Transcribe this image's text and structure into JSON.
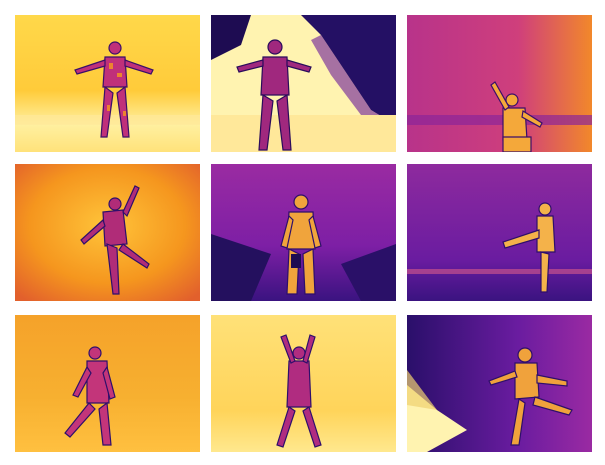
{
  "gallery": {
    "rows": 3,
    "columns": 3,
    "palette": {
      "hot_white": "#fffbd2",
      "yellow": "#ffd84a",
      "orange": "#f79a1e",
      "red_orange": "#e4582f",
      "magenta": "#b8338a",
      "purple": "#7d1fa5",
      "deep_purple": "#2e0f6b",
      "navy": "#140a3c"
    },
    "tiles": [
      {
        "id": "t1",
        "scene": "thermal-figure-arms-spread",
        "background": "yellow"
      },
      {
        "id": "t2",
        "scene": "thermal-figure-arms-spread-dark-corner",
        "background": "white-purple"
      },
      {
        "id": "t3",
        "scene": "thermal-figure-waving",
        "background": "magenta-orange"
      },
      {
        "id": "t4",
        "scene": "thermal-figure-leaning",
        "background": "orange"
      },
      {
        "id": "t5",
        "scene": "thermal-figure-standing",
        "background": "purple"
      },
      {
        "id": "t6",
        "scene": "thermal-figure-leg-raised",
        "background": "purple"
      },
      {
        "id": "t7",
        "scene": "thermal-figure-walking",
        "background": "orange"
      },
      {
        "id": "t8",
        "scene": "thermal-figure-arms-raised",
        "background": "yellow"
      },
      {
        "id": "t9",
        "scene": "thermal-figure-kicking",
        "background": "purple-white"
      }
    ]
  }
}
